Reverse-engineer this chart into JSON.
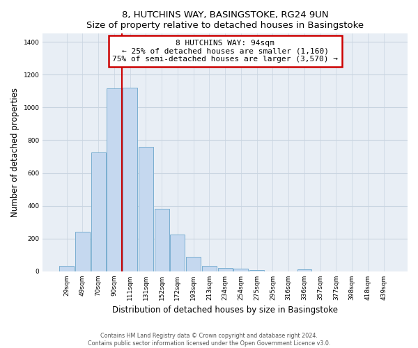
{
  "title": "8, HUTCHINS WAY, BASINGSTOKE, RG24 9UN",
  "subtitle": "Size of property relative to detached houses in Basingstoke",
  "xlabel": "Distribution of detached houses by size in Basingstoke",
  "ylabel": "Number of detached properties",
  "categories": [
    "29sqm",
    "49sqm",
    "70sqm",
    "90sqm",
    "111sqm",
    "131sqm",
    "152sqm",
    "172sqm",
    "193sqm",
    "213sqm",
    "234sqm",
    "254sqm",
    "275sqm",
    "295sqm",
    "316sqm",
    "336sqm",
    "357sqm",
    "377sqm",
    "398sqm",
    "418sqm",
    "439sqm"
  ],
  "values": [
    35,
    240,
    725,
    1115,
    1120,
    760,
    380,
    225,
    90,
    32,
    22,
    18,
    10,
    0,
    0,
    12,
    0,
    0,
    0,
    0,
    0
  ],
  "bar_color": "#c5d8ef",
  "bar_edge_color": "#7aaed0",
  "vline_color": "#cc0000",
  "annotation_title": "8 HUTCHINS WAY: 94sqm",
  "annotation_line1": "← 25% of detached houses are smaller (1,160)",
  "annotation_line2": "75% of semi-detached houses are larger (3,570) →",
  "annotation_box_color": "#cc0000",
  "ylim": [
    0,
    1450
  ],
  "yticks": [
    0,
    200,
    400,
    600,
    800,
    1000,
    1200,
    1400
  ],
  "footer_line1": "Contains HM Land Registry data © Crown copyright and database right 2024.",
  "footer_line2": "Contains public sector information licensed under the Open Government Licence v3.0.",
  "bg_color": "#ffffff",
  "plot_bg_color": "#e8eef5",
  "grid_color": "#c8d4e0"
}
